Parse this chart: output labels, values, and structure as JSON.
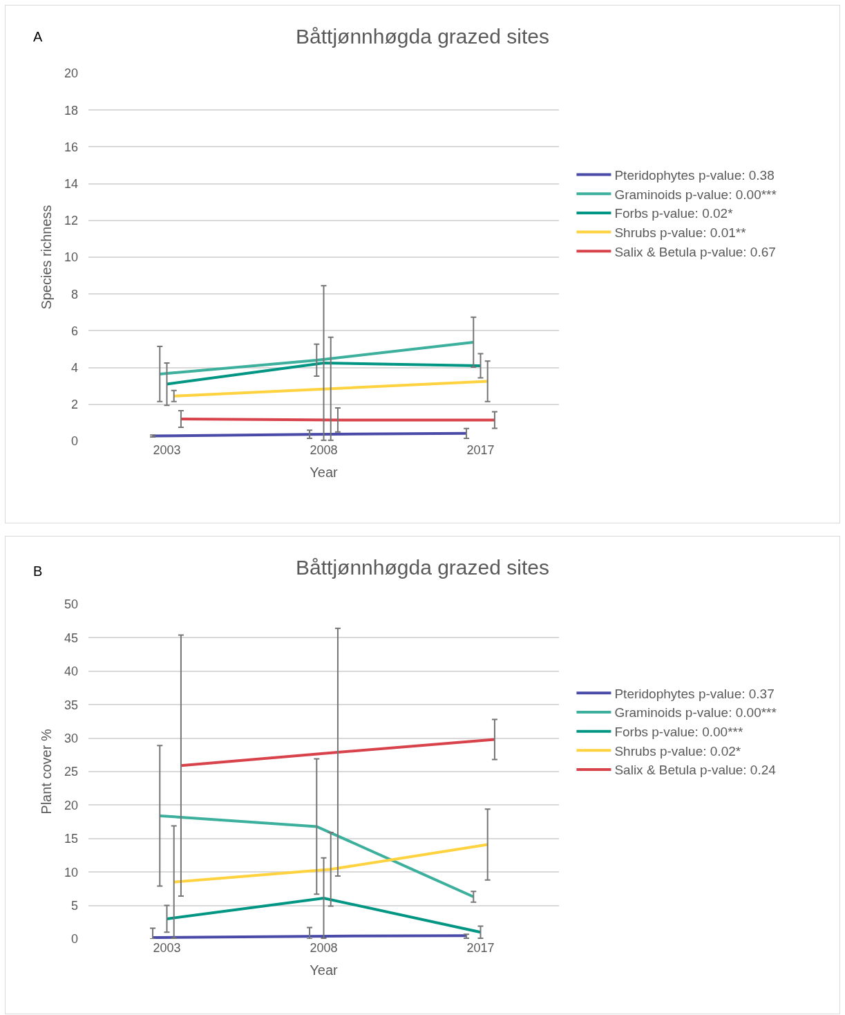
{
  "chart_data": [
    {
      "type": "line",
      "title": "Båttjønnhøgda grazed sites",
      "xlabel": "Year",
      "ylabel": "Species richness",
      "annotations": [
        "A"
      ],
      "categories": [
        "2003",
        "2008",
        "2017"
      ],
      "ylim": [
        0,
        20
      ],
      "yticks": [
        0,
        2,
        4,
        6,
        8,
        10,
        12,
        14,
        16,
        18,
        20
      ],
      "grid": "y",
      "legend": "right",
      "marker": "none",
      "line_style": "solid",
      "series": [
        {
          "name": "Pteridophytes p-value: 0.38",
          "color": "#4a4ba8",
          "values": [
            0.28,
            0.37,
            0.42
          ],
          "errors": [
            0.05,
            0.22,
            0.27
          ]
        },
        {
          "name": "Graminoids p-value: 0.00***",
          "color": "#3cb09c",
          "values": [
            3.65,
            4.4,
            5.38
          ],
          "errors": [
            1.5,
            0.87,
            1.36
          ]
        },
        {
          "name": "Forbs p-value: 0.02*",
          "color": "#009683",
          "values": [
            3.1,
            4.25,
            4.1
          ],
          "errors": [
            1.15,
            4.2,
            0.66
          ]
        },
        {
          "name": "Shrubs p-value: 0.01**",
          "color": "#ffd23f",
          "values": [
            2.45,
            2.85,
            3.25
          ],
          "errors": [
            0.3,
            2.8,
            1.1
          ]
        },
        {
          "name": "Salix & Betula p-value: 0.67",
          "color": "#d8434b",
          "values": [
            1.2,
            1.15,
            1.15
          ],
          "errors": [
            0.45,
            0.65,
            0.45
          ]
        }
      ]
    },
    {
      "type": "line",
      "title": "Båttjønnhøgda grazed sites",
      "xlabel": "Year",
      "ylabel": "Plant cover %",
      "annotations": [
        "B"
      ],
      "categories": [
        "2003",
        "2008",
        "2017"
      ],
      "ylim": [
        0,
        50
      ],
      "yticks": [
        0,
        5,
        10,
        15,
        20,
        25,
        30,
        35,
        40,
        45,
        50
      ],
      "grid": "y",
      "legend": "right",
      "marker": "none",
      "line_style": "solid",
      "series": [
        {
          "name": "Pteridophytes p-value: 0.37",
          "color": "#4a4ba8",
          "values": [
            0.2,
            0.4,
            0.5
          ],
          "errors": [
            [
              0,
              1.6
            ],
            [
              0,
              1.7
            ],
            [
              0.1,
              0.7
            ]
          ]
        },
        {
          "name": "Graminoids p-value: 0.00***",
          "color": "#3cb09c",
          "values": [
            18.4,
            16.8,
            6.3
          ],
          "errors": [
            10.5,
            10.1,
            0.8
          ]
        },
        {
          "name": "Forbs p-value: 0.00***",
          "color": "#009683",
          "values": [
            3.0,
            6.1,
            1.0
          ],
          "errors": [
            2.0,
            6.0,
            0.9
          ]
        },
        {
          "name": "Shrubs p-value: 0.02*",
          "color": "#ffd23f",
          "values": [
            8.5,
            10.4,
            14.1
          ],
          "errors": [
            8.4,
            5.5,
            5.3
          ]
        },
        {
          "name": "Salix & Betula p-value: 0.24",
          "color": "#d8434b",
          "values": [
            25.9,
            27.9,
            29.8
          ],
          "errors": [
            19.5,
            18.5,
            3.0
          ]
        }
      ]
    }
  ]
}
